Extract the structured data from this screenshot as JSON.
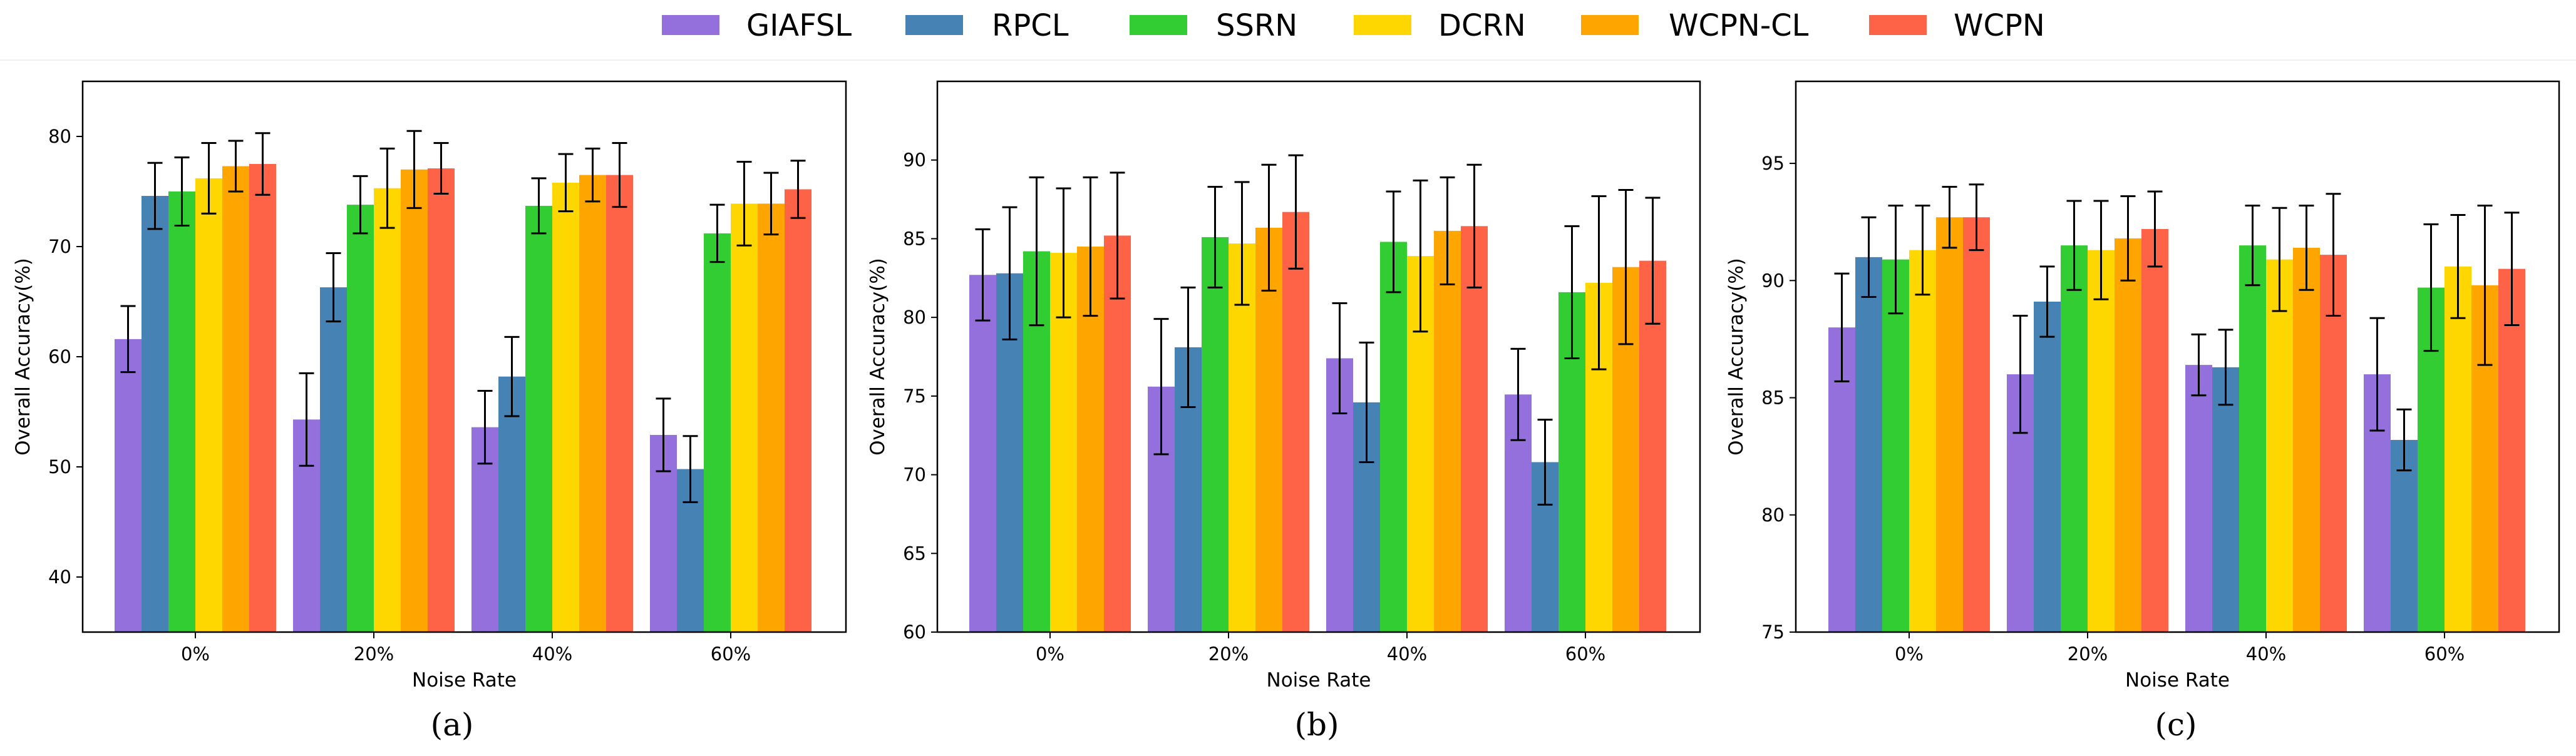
{
  "legend": [
    {
      "name": "GIAFSL",
      "color": "#9370DB"
    },
    {
      "name": "RPCL",
      "color": "#4682B4"
    },
    {
      "name": "SSRN",
      "color": "#32CD32"
    },
    {
      "name": "DCRN",
      "color": "#FFD700"
    },
    {
      "name": "WCPN-CL",
      "color": "#FFA500"
    },
    {
      "name": "WCPN",
      "color": "#FF6347"
    }
  ],
  "chart_data": [
    {
      "type": "bar",
      "caption": "(a)",
      "xlabel": "Noise Rate",
      "ylabel": "Overall Accuracy(%)",
      "ylim": [
        35,
        85
      ],
      "yticks": [
        40,
        50,
        60,
        70,
        80
      ],
      "categories": [
        "0%",
        "20%",
        "40%",
        "60%"
      ],
      "series": [
        {
          "name": "GIAFSL",
          "values": [
            61.6,
            54.3,
            53.6,
            52.9
          ],
          "errors": [
            3.0,
            4.2,
            3.3,
            3.3
          ]
        },
        {
          "name": "RPCL",
          "values": [
            74.6,
            66.3,
            58.2,
            49.8
          ],
          "errors": [
            3.0,
            3.1,
            3.6,
            3.0
          ]
        },
        {
          "name": "SSRN",
          "values": [
            75.0,
            73.8,
            73.7,
            71.2
          ],
          "errors": [
            3.1,
            2.6,
            2.5,
            2.6
          ]
        },
        {
          "name": "DCRN",
          "values": [
            76.2,
            75.3,
            75.8,
            73.9
          ],
          "errors": [
            3.2,
            3.6,
            2.6,
            3.8
          ]
        },
        {
          "name": "WCPN-CL",
          "values": [
            77.3,
            77.0,
            76.5,
            73.9
          ],
          "errors": [
            2.3,
            3.5,
            2.4,
            2.8
          ]
        },
        {
          "name": "WCPN",
          "values": [
            77.5,
            77.1,
            76.5,
            75.2
          ],
          "errors": [
            2.8,
            2.3,
            2.9,
            2.6
          ]
        }
      ]
    },
    {
      "type": "bar",
      "caption": "(b)",
      "xlabel": "Noise Rate",
      "ylabel": "Overall Accuracy(%)",
      "ylim": [
        60,
        95
      ],
      "yticks": [
        60,
        65,
        70,
        75,
        80,
        85,
        90
      ],
      "categories": [
        "0%",
        "20%",
        "40%",
        "60%"
      ],
      "series": [
        {
          "name": "GIAFSL",
          "values": [
            82.7,
            75.6,
            77.4,
            75.1
          ],
          "errors": [
            2.9,
            4.3,
            3.5,
            2.9
          ]
        },
        {
          "name": "RPCL",
          "values": [
            82.8,
            78.1,
            74.6,
            70.8
          ],
          "errors": [
            4.2,
            3.8,
            3.8,
            2.7
          ]
        },
        {
          "name": "SSRN",
          "values": [
            84.2,
            85.1,
            84.8,
            81.6
          ],
          "errors": [
            4.7,
            3.2,
            3.2,
            4.2
          ]
        },
        {
          "name": "DCRN",
          "values": [
            84.1,
            84.7,
            83.9,
            82.2
          ],
          "errors": [
            4.1,
            3.9,
            4.8,
            5.5
          ]
        },
        {
          "name": "WCPN-CL",
          "values": [
            84.5,
            85.7,
            85.5,
            83.2
          ],
          "errors": [
            4.4,
            4.0,
            3.4,
            4.9
          ]
        },
        {
          "name": "WCPN",
          "values": [
            85.2,
            86.7,
            85.8,
            83.6
          ],
          "errors": [
            4.0,
            3.6,
            3.9,
            4.0
          ]
        }
      ]
    },
    {
      "type": "bar",
      "caption": "(c)",
      "xlabel": "Noise Rate",
      "ylabel": "Overall Accuracy(%)",
      "ylim": [
        75,
        98.5
      ],
      "yticks": [
        75,
        80,
        85,
        90,
        95
      ],
      "categories": [
        "0%",
        "20%",
        "40%",
        "60%"
      ],
      "series": [
        {
          "name": "GIAFSL",
          "values": [
            88.0,
            86.0,
            86.4,
            86.0
          ],
          "errors": [
            2.3,
            2.5,
            1.3,
            2.4
          ]
        },
        {
          "name": "RPCL",
          "values": [
            91.0,
            89.1,
            86.3,
            83.2
          ],
          "errors": [
            1.7,
            1.5,
            1.6,
            1.3
          ]
        },
        {
          "name": "SSRN",
          "values": [
            90.9,
            91.5,
            91.5,
            89.7
          ],
          "errors": [
            2.3,
            1.9,
            1.7,
            2.7
          ]
        },
        {
          "name": "DCRN",
          "values": [
            91.3,
            91.3,
            90.9,
            90.6
          ],
          "errors": [
            1.9,
            2.1,
            2.2,
            2.2
          ]
        },
        {
          "name": "WCPN-CL",
          "values": [
            92.7,
            91.8,
            91.4,
            89.8
          ],
          "errors": [
            1.3,
            1.8,
            1.8,
            3.4
          ]
        },
        {
          "name": "WCPN",
          "values": [
            92.7,
            92.2,
            91.1,
            90.5
          ],
          "errors": [
            1.4,
            1.6,
            2.6,
            2.4
          ]
        }
      ]
    }
  ]
}
